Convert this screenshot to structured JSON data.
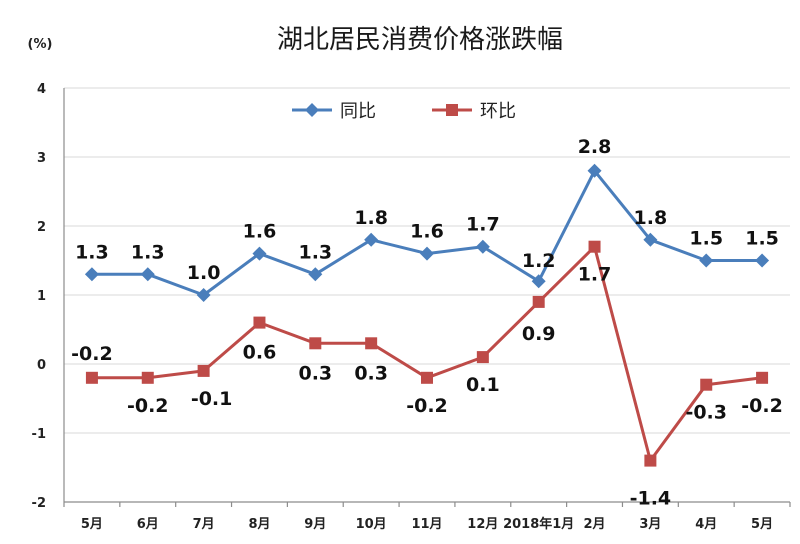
{
  "chart_data": {
    "type": "line",
    "title": "湖北居民消费价格涨跌幅",
    "ylabel": "(%)",
    "xlabel": "",
    "ylim": [
      -2,
      4
    ],
    "yticks": [
      "-2",
      "-1",
      "0",
      "1",
      "2",
      "3",
      "4"
    ],
    "categories": [
      "5月",
      "6月",
      "7月",
      "8月",
      "9月",
      "10月",
      "11月",
      "12月",
      "2018年1月",
      "2月",
      "3月",
      "4月",
      "5月"
    ],
    "grid": true,
    "legend_position": "top",
    "series": [
      {
        "name": "同比",
        "color": "#4a7ebb",
        "marker": "diamond",
        "values": [
          1.3,
          1.3,
          1.0,
          1.6,
          1.3,
          1.8,
          1.6,
          1.7,
          1.2,
          2.8,
          1.8,
          1.5,
          1.5
        ],
        "labels": [
          "1.3",
          "1.3",
          "1.0",
          "1.6",
          "1.3",
          "1.8",
          "1.6",
          "1.7",
          "1.2",
          "2.8",
          "1.8",
          "1.5",
          "1.5"
        ]
      },
      {
        "name": "环比",
        "color": "#be4b48",
        "marker": "square",
        "values": [
          -0.2,
          -0.2,
          -0.1,
          0.6,
          0.3,
          0.3,
          -0.2,
          0.1,
          0.9,
          1.7,
          -1.4,
          -0.3,
          -0.2
        ],
        "labels": [
          "-0.2",
          "-0.2",
          "-0.1",
          "0.6",
          "0.3",
          "0.3",
          "-0.2",
          "0.1",
          "0.9",
          "1.7",
          "-1.4",
          "-0.3",
          "-0.2"
        ]
      }
    ]
  }
}
